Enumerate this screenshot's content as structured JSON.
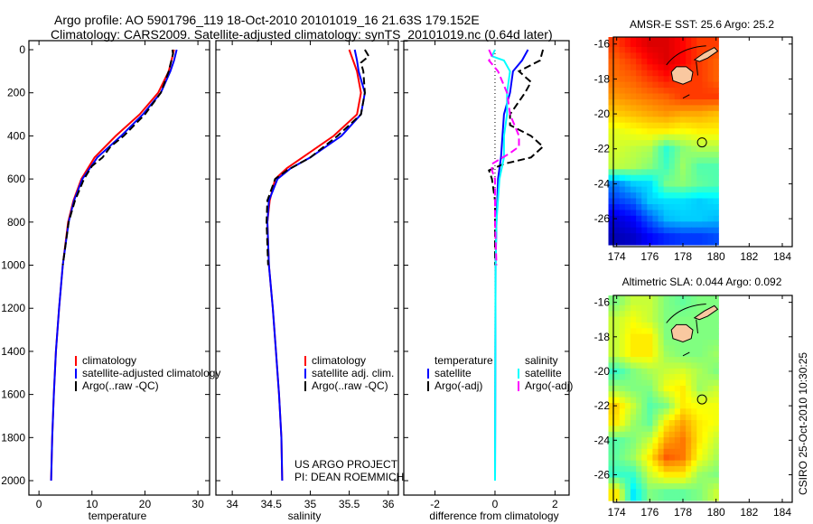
{
  "title_line1": "Argo profile: AO 5901796_119 18-Oct-2010 20101019_16 21.63S 179.152E",
  "title_line2": "Climatology: CARS2009. Satellite-adjusted climatology: synTS_20101019.nc (0.64d later)",
  "credit": "CSIRO 25-Oct-2010 10:30:25",
  "project_line1": "US ARGO PROJECT",
  "project_line2": "PI: DEAN ROEMMICH",
  "colors": {
    "red": "#ff0000",
    "blue": "#0000ff",
    "black": "#000000",
    "cyan": "#00ffff",
    "magenta": "#ff00ff",
    "land": "#f9c8a0"
  },
  "chart_data": [
    {
      "type": "line",
      "id": "temp",
      "xlabel": "temperature",
      "ylabel": "",
      "xlim": [
        -1.9,
        32.2
      ],
      "ylim": [
        2067,
        -42
      ],
      "xticks": [
        0,
        10,
        20,
        30
      ],
      "yticks": [
        0,
        200,
        400,
        600,
        800,
        1000,
        1200,
        1400,
        1600,
        1800,
        2000
      ],
      "legend": [
        "climatology",
        "satellite-adjusted climatology",
        "Argo(..raw -QC)"
      ],
      "series": [
        {
          "name": "climatology",
          "color": "red",
          "dash": false,
          "depth": [
            0,
            50,
            100,
            200,
            300,
            400,
            500,
            600,
            700,
            800,
            1000,
            1200,
            1400,
            1600,
            1800,
            2000
          ],
          "values": [
            25.5,
            25,
            24.5,
            22.5,
            19,
            14.5,
            10.5,
            8,
            6.5,
            5.5,
            4.5,
            3.8,
            3.2,
            2.8,
            2.5,
            2.3
          ]
        },
        {
          "name": "satellite-adjusted climatology",
          "color": "blue",
          "dash": false,
          "depth": [
            0,
            50,
            100,
            200,
            300,
            400,
            500,
            600,
            700,
            800,
            1000,
            1200,
            1400,
            1600,
            1800,
            2000
          ],
          "values": [
            26,
            25.5,
            24.8,
            23,
            19.6,
            15.5,
            11,
            8.2,
            6.6,
            5.6,
            4.5,
            3.8,
            3.2,
            2.8,
            2.5,
            2.3
          ]
        },
        {
          "name": "Argo(..raw -QC)",
          "color": "black",
          "dash": true,
          "depth": [
            0,
            20,
            100,
            200,
            300,
            400,
            450,
            500,
            540,
            600,
            700,
            800,
            1000
          ],
          "values": [
            25.2,
            25.3,
            24.5,
            23,
            20,
            16,
            13.5,
            12,
            10,
            8.5,
            6.8,
            5.6,
            4.5
          ]
        }
      ]
    },
    {
      "type": "line",
      "id": "sal",
      "xlabel": "salinity",
      "xlim": [
        33.79,
        36.13
      ],
      "ylim": [
        2067,
        -42
      ],
      "xticks": [
        34,
        34.5,
        35,
        35.5,
        36
      ],
      "yticks": [
        0,
        200,
        400,
        600,
        800,
        1000,
        1200,
        1400,
        1600,
        1800,
        2000
      ],
      "legend": [
        "climatology",
        "satellite adj. clim.",
        "Argo(..raw -QC)"
      ],
      "series": [
        {
          "name": "climatology",
          "color": "red",
          "dash": false,
          "depth": [
            0,
            50,
            100,
            200,
            300,
            400,
            500,
            550,
            600,
            700,
            800,
            1000,
            1200,
            1400,
            1600,
            1800,
            2000
          ],
          "values": [
            35.5,
            35.55,
            35.6,
            35.65,
            35.6,
            35.3,
            34.9,
            34.7,
            34.55,
            34.48,
            34.45,
            34.47,
            34.52,
            34.56,
            34.6,
            34.63,
            34.64
          ]
        },
        {
          "name": "satellite adj. clim.",
          "color": "blue",
          "dash": false,
          "depth": [
            0,
            50,
            100,
            200,
            300,
            400,
            500,
            550,
            600,
            700,
            800,
            1000,
            1200,
            1400,
            1600,
            1800,
            2000
          ],
          "values": [
            35.57,
            35.6,
            35.62,
            35.7,
            35.65,
            35.4,
            35.0,
            34.75,
            34.58,
            34.47,
            34.45,
            34.47,
            34.52,
            34.56,
            34.6,
            34.63,
            34.64
          ]
        },
        {
          "name": "Argo(..raw -QC)",
          "color": "black",
          "dash": true,
          "depth": [
            0,
            30,
            60,
            100,
            200,
            300,
            400,
            500,
            560,
            600,
            700,
            800,
            1000
          ],
          "values": [
            35.7,
            35.75,
            35.65,
            35.68,
            35.7,
            35.65,
            35.35,
            35.0,
            34.7,
            34.55,
            34.45,
            34.44,
            34.46
          ]
        }
      ]
    },
    {
      "type": "line",
      "id": "diff",
      "xlabel": "difference from climatology",
      "xlim": [
        -3.04,
        2.47
      ],
      "ylim": [
        2067,
        -42
      ],
      "xticks": [
        -2,
        0,
        2
      ],
      "yticks": [
        0,
        200,
        400,
        600,
        800,
        1000,
        1200,
        1400,
        1600,
        1800,
        2000
      ],
      "legend_temperature_title": "temperature",
      "legend_salinity_title": "salinity",
      "legend": [
        "satellite",
        "Argo(-adj)",
        "satellite",
        "Argo(-adj)"
      ],
      "series": [
        {
          "name": "temperature satellite",
          "color": "blue",
          "dash": false,
          "depth": [
            0,
            50,
            100,
            200,
            300,
            500,
            600,
            800,
            1000,
            2000
          ],
          "values": [
            1.1,
            0.9,
            0.6,
            0.5,
            0.3,
            0.2,
            0.1,
            0.05,
            0.02,
            0
          ]
        },
        {
          "name": "temperature Argo(-adj)",
          "color": "black",
          "dash": true,
          "depth": [
            0,
            50,
            100,
            150,
            200,
            300,
            350,
            400,
            450,
            500,
            530,
            560,
            600,
            700,
            800,
            1000
          ],
          "values": [
            1.6,
            1.5,
            0.8,
            1.2,
            1.0,
            0.5,
            0.5,
            1.2,
            1.6,
            1.2,
            0.3,
            -0.2,
            -0.1,
            0,
            0,
            0
          ]
        },
        {
          "name": "salinity satellite",
          "color": "cyan",
          "dash": false,
          "depth": [
            0,
            30,
            50,
            100,
            200,
            300,
            400,
            500,
            600,
            800,
            1000,
            2000
          ],
          "values": [
            0,
            -0.1,
            0.3,
            0.5,
            0.4,
            0.4,
            0.3,
            0.3,
            0.15,
            0.05,
            0.02,
            0
          ]
        },
        {
          "name": "salinity Argo(-adj)",
          "color": "magenta",
          "dash": true,
          "depth": [
            0,
            30,
            50,
            100,
            200,
            300,
            400,
            450,
            480,
            530,
            560,
            600,
            800,
            1000
          ],
          "values": [
            -0.2,
            -0.1,
            -0.2,
            0.1,
            0.4,
            0.5,
            0.8,
            0.8,
            0.5,
            -0.1,
            -0.1,
            0,
            0,
            0.05
          ]
        }
      ]
    },
    {
      "type": "heatmap",
      "id": "sst",
      "title": "AMSR-E SST: 25.6 Argo: 25.2",
      "xlim": [
        173.8,
        184.6
      ],
      "ylim": [
        -27.6,
        -15.6
      ],
      "xticks": [
        174,
        176,
        178,
        180,
        182,
        184
      ],
      "yticks": [
        -16,
        -18,
        -20,
        -22,
        -24,
        -26
      ],
      "lon": [
        174,
        175,
        176,
        177,
        178,
        179,
        180
      ],
      "lat": [
        -16,
        -17,
        -18,
        -19,
        -20,
        -21,
        -22,
        -23,
        -24,
        -25,
        -26,
        -27
      ],
      "crange": [
        22.5,
        28
      ],
      "argo_position": [
        179.152,
        -21.63
      ],
      "values": [
        [
          27,
          27.3,
          27.5,
          27.5,
          27.3,
          27,
          27
        ],
        [
          26.8,
          27,
          27.3,
          27.5,
          27.3,
          27,
          26.8
        ],
        [
          26.7,
          26.8,
          27,
          27.2,
          27,
          27,
          26.8
        ],
        [
          26.5,
          26.6,
          26.7,
          26.8,
          27,
          27,
          27
        ],
        [
          26.2,
          26.3,
          26.4,
          26.5,
          26.4,
          26.4,
          26.3
        ],
        [
          25.8,
          25.9,
          26,
          26,
          25.9,
          26,
          26
        ],
        [
          25.7,
          25.6,
          25.5,
          24.8,
          25.3,
          25.5,
          25.5
        ],
        [
          25.6,
          25.5,
          25.3,
          24.9,
          25.4,
          25,
          25
        ],
        [
          23.9,
          24.3,
          24.4,
          25.2,
          25.3,
          25.1,
          25
        ],
        [
          23.5,
          23.7,
          24.3,
          24.4,
          24.4,
          24.3,
          24.4
        ],
        [
          23,
          23.2,
          23.7,
          24.2,
          24.3,
          24.3,
          24.2
        ],
        [
          22.8,
          22.9,
          23.2,
          23.4,
          23.5,
          23.5,
          23.6
        ]
      ]
    },
    {
      "type": "heatmap",
      "id": "sla",
      "title": "Altimetric SLA: 0.044 Argo: 0.092",
      "xlim": [
        173.8,
        184.6
      ],
      "ylim": [
        -27.6,
        -15.6
      ],
      "xticks": [
        174,
        176,
        178,
        180,
        182,
        184
      ],
      "yticks": [
        -16,
        -18,
        -20,
        -22,
        -24,
        -26
      ],
      "lon": [
        174,
        175,
        176,
        177,
        178,
        179,
        180
      ],
      "lat": [
        -16,
        -17,
        -18,
        -19,
        -20,
        -21,
        -22,
        -23,
        -24,
        -25,
        -26,
        -27
      ],
      "crange": [
        -0.35,
        0.35
      ],
      "argo_position": [
        179.152,
        -21.63
      ],
      "values": [
        [
          0,
          0.05,
          0.05,
          0,
          -0.02,
          0,
          0
        ],
        [
          0.05,
          0.08,
          0.05,
          0,
          0,
          0,
          0
        ],
        [
          0.05,
          0.1,
          0.1,
          0,
          0,
          0,
          0
        ],
        [
          0.05,
          0.1,
          0.1,
          0.02,
          0,
          0,
          0.02
        ],
        [
          -0.05,
          0,
          0.03,
          0.05,
          0.06,
          0.03,
          0
        ],
        [
          0.02,
          0,
          0,
          0.08,
          0.1,
          0.02,
          0.05
        ],
        [
          0.12,
          0.05,
          -0.03,
          0,
          0.1,
          0.08,
          0.08
        ],
        [
          0.1,
          0.02,
          -0.02,
          0.1,
          0.15,
          0.1,
          0.08
        ],
        [
          -0.03,
          0,
          0.05,
          0.15,
          0.18,
          0.1,
          0.05
        ],
        [
          -0.02,
          0.02,
          0.1,
          0.2,
          0.18,
          0.08,
          0.03
        ],
        [
          -0.05,
          -0.05,
          0.05,
          0.1,
          0.1,
          0.02,
          0
        ],
        [
          0.1,
          -0.1,
          0,
          -0.02,
          -0.02,
          0,
          0.05
        ]
      ]
    }
  ]
}
